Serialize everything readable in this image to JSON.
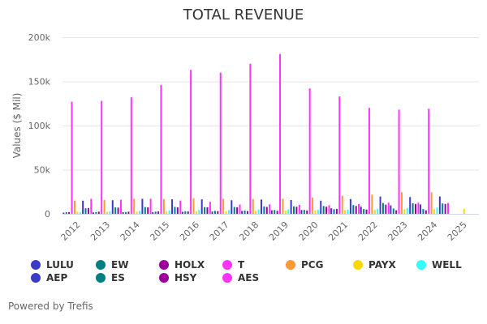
{
  "chart_data": {
    "type": "bar",
    "title": "TOTAL REVENUE",
    "xlabel": "",
    "ylabel": "Values ($ Mil)",
    "ylim": [
      0,
      200000
    ],
    "yticks": [
      0,
      50000,
      100000,
      150000,
      200000
    ],
    "ytick_labels": [
      "0",
      "50k",
      "100k",
      "150k",
      "200k"
    ],
    "grid": true,
    "legend_position": "bottom",
    "categories": [
      "2012",
      "2013",
      "2014",
      "2015",
      "2016",
      "2017",
      "2018",
      "2019",
      "2020",
      "2021",
      "2022",
      "2023",
      "2024",
      "2025"
    ],
    "series": [
      {
        "name": "LULU",
        "color": "#3a3acc",
        "values": [
          1400,
          1600,
          1800,
          1900,
          2300,
          2600,
          3300,
          4000,
          4400,
          6300,
          8100,
          9600,
          10600,
          null
        ]
      },
      {
        "name": "EW",
        "color": "#008080",
        "values": [
          1900,
          2000,
          2000,
          2500,
          3000,
          3400,
          3700,
          4300,
          4400,
          5200,
          5400,
          6000,
          5400,
          null
        ]
      },
      {
        "name": "HOLX",
        "color": "#990099",
        "values": [
          2000,
          2500,
          2500,
          2700,
          2800,
          3100,
          3200,
          3400,
          3800,
          5600,
          4900,
          4000,
          4000,
          null
        ]
      },
      {
        "name": "T",
        "color": "#ff33ff",
        "values": [
          127000,
          128000,
          132000,
          146000,
          163000,
          160000,
          170000,
          181000,
          142000,
          133000,
          120000,
          118000,
          119000,
          null
        ]
      },
      {
        "name": "PCG",
        "color": "#ff9933",
        "values": [
          15000,
          15600,
          17100,
          16800,
          17700,
          17100,
          16800,
          17100,
          18500,
          20600,
          21700,
          24400,
          24400,
          null
        ]
      },
      {
        "name": "PAYX",
        "color": "#ffd700",
        "values": [
          2300,
          2300,
          2500,
          2700,
          2900,
          3100,
          3400,
          3800,
          4000,
          4100,
          4600,
          5000,
          5300,
          5600
        ]
      },
      {
        "name": "WELL",
        "color": "#33ffff",
        "values": [
          1800,
          2900,
          3300,
          3900,
          4300,
          4300,
          4700,
          5100,
          4600,
          4700,
          5900,
          6600,
          7100,
          null
        ]
      },
      {
        "name": "AEP",
        "color": "#3a3acc",
        "values": [
          14900,
          15400,
          17000,
          16500,
          16400,
          15400,
          16200,
          15600,
          14900,
          16800,
          19600,
          19000,
          19700,
          null
        ]
      },
      {
        "name": "ES",
        "color": "#008080",
        "values": [
          6300,
          7300,
          7700,
          7900,
          7600,
          7800,
          8400,
          8500,
          8900,
          9900,
          12300,
          11900,
          11800,
          null
        ]
      },
      {
        "name": "HSY",
        "color": "#990099",
        "values": [
          6600,
          7100,
          7400,
          7400,
          7400,
          7500,
          7800,
          8000,
          8100,
          8900,
          10400,
          11200,
          11200,
          null
        ]
      },
      {
        "name": "AES",
        "color": "#ff33ff",
        "values": [
          17000,
          15900,
          17100,
          15000,
          13600,
          10500,
          10700,
          10200,
          9700,
          11100,
          12600,
          12700,
          12300,
          null
        ]
      }
    ]
  },
  "legend": [
    {
      "label": "LULU",
      "color": "#3a3acc"
    },
    {
      "label": "AEP",
      "color": "#3a3acc"
    },
    {
      "label": "EW",
      "color": "#008080"
    },
    {
      "label": "ES",
      "color": "#008080"
    },
    {
      "label": "HOLX",
      "color": "#990099"
    },
    {
      "label": "HSY",
      "color": "#990099"
    },
    {
      "label": "T",
      "color": "#ff33ff"
    },
    {
      "label": "AES",
      "color": "#ff33ff"
    },
    {
      "label": "PCG",
      "color": "#ff9933"
    },
    {
      "label": "PAYX",
      "color": "#ffd700"
    },
    {
      "label": "WELL",
      "color": "#33ffff"
    }
  ],
  "footer": "Powered by Trefis"
}
